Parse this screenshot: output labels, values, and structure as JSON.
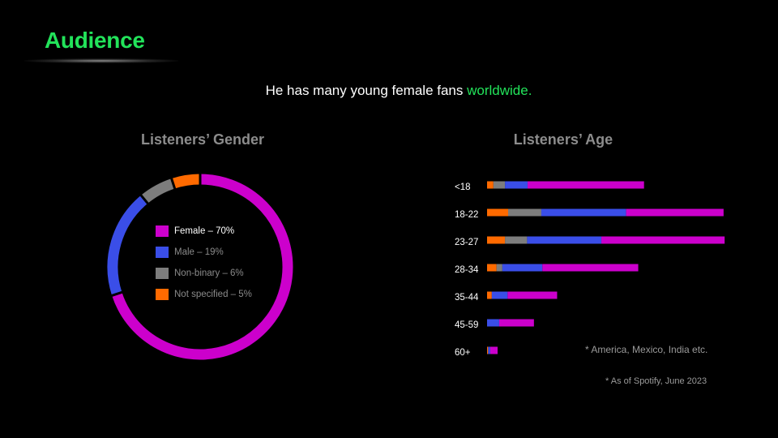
{
  "page": {
    "title": "Audience",
    "subtitle_main": "He has many young female fans ",
    "subtitle_accent": "worldwide.",
    "note_regions": "* America, Mexico, India etc.",
    "note_source": "* As of Spotify, June 2023"
  },
  "colors": {
    "accent": "#22e35a",
    "female": "#cc00cc",
    "male": "#3a4ee8",
    "nonbinary": "#7d7d7d",
    "not_specified": "#ff6a00"
  },
  "chart_data": [
    {
      "type": "pie",
      "title": "Listeners’ Gender",
      "style": "donut",
      "legend_placement": "center",
      "slices": [
        {
          "label": "Female – 70%",
          "value": 70,
          "color": "#cc00cc"
        },
        {
          "label": "Male – 19%",
          "value": 19,
          "color": "#3a4ee8"
        },
        {
          "label": "Non-binary – 6%",
          "value": 6,
          "color": "#7d7d7d"
        },
        {
          "label": "Not specified – 5%",
          "value": 5,
          "color": "#ff6a00"
        }
      ]
    },
    {
      "type": "bar",
      "orientation": "horizontal",
      "stacked": true,
      "title": "Listeners’ Age",
      "categories": [
        "<18",
        "18-22",
        "23-27",
        "28-34",
        "35-44",
        "45-59",
        "60+"
      ],
      "series": [
        {
          "color": "#ff6a00",
          "values": [
            1.2,
            4.0,
            3.4,
            1.8,
            0.9,
            0.0,
            0.2
          ]
        },
        {
          "color": "#7d7d7d",
          "values": [
            2.2,
            6.3,
            4.2,
            1.1,
            0.0,
            0.0,
            0.0
          ]
        },
        {
          "color": "#3a4ee8",
          "values": [
            4.3,
            16.1,
            14.1,
            7.6,
            3.0,
            2.3,
            0.4
          ]
        },
        {
          "color": "#cc00cc",
          "values": [
            22.1,
            18.5,
            23.4,
            18.2,
            9.4,
            6.6,
            1.4
          ]
        }
      ]
    }
  ]
}
